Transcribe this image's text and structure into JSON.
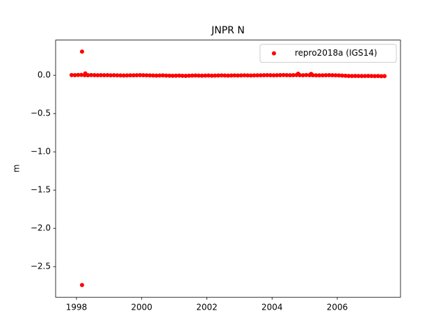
{
  "chart_data": {
    "type": "scatter",
    "title": "JNPR N",
    "y_label": "m",
    "series": [
      {
        "name": "repro2018a (IGS14)",
        "color": "#ff0000",
        "x": [
          1997.85,
          1997.95,
          1998.05,
          1998.15,
          1998.25,
          1998.35,
          1998.45,
          1998.55,
          1998.65,
          1998.75,
          1998.85,
          1998.95,
          1999.05,
          1999.15,
          1999.25,
          1999.35,
          1999.45,
          1999.55,
          1999.65,
          1999.75,
          1999.85,
          1999.95,
          2000.05,
          2000.15,
          2000.25,
          2000.35,
          2000.45,
          2000.55,
          2000.65,
          2000.75,
          2000.85,
          2000.95,
          2001.05,
          2001.15,
          2001.25,
          2001.35,
          2001.45,
          2001.55,
          2001.65,
          2001.75,
          2001.85,
          2001.95,
          2002.05,
          2002.15,
          2002.25,
          2002.35,
          2002.45,
          2002.55,
          2002.65,
          2002.75,
          2002.85,
          2002.95,
          2003.05,
          2003.15,
          2003.25,
          2003.35,
          2003.45,
          2003.55,
          2003.65,
          2003.75,
          2003.85,
          2003.95,
          2004.05,
          2004.15,
          2004.25,
          2004.35,
          2004.45,
          2004.55,
          2004.65,
          2004.75,
          2004.85,
          2004.95,
          2005.05,
          2005.15,
          2005.25,
          2005.35,
          2005.45,
          2005.55,
          2005.65,
          2005.75,
          2005.85,
          2005.95,
          2006.05,
          2006.15,
          2006.25,
          2006.35,
          2006.45,
          2006.55,
          2006.65,
          2006.75,
          2006.85,
          2006.95,
          2007.05,
          2007.15,
          2007.25,
          2007.35,
          2007.45,
          1998.17,
          1998.17,
          1998.27,
          2004.8,
          2005.2
        ],
        "values": [
          0.003,
          0.002,
          0.004,
          0.005,
          0.002,
          0.001,
          0.003,
          0.002,
          0.001,
          0.002,
          0.001,
          0.002,
          0.0,
          0.001,
          -0.001,
          -0.002,
          -0.003,
          -0.002,
          -0.001,
          0.0,
          0.001,
          0.002,
          0.001,
          0.0,
          -0.002,
          -0.003,
          -0.004,
          -0.003,
          -0.002,
          -0.004,
          -0.005,
          -0.006,
          -0.005,
          -0.004,
          -0.006,
          -0.007,
          -0.005,
          -0.004,
          -0.003,
          -0.004,
          -0.005,
          -0.004,
          -0.003,
          -0.005,
          -0.004,
          -0.003,
          -0.002,
          -0.003,
          -0.004,
          -0.003,
          -0.002,
          -0.003,
          -0.002,
          -0.001,
          -0.002,
          -0.003,
          -0.002,
          -0.001,
          0.0,
          0.001,
          0.002,
          0.001,
          0.0,
          0.001,
          0.002,
          0.003,
          0.002,
          0.001,
          0.002,
          0.003,
          0.002,
          0.001,
          0.003,
          0.002,
          0.001,
          0.0,
          -0.001,
          0.0,
          0.001,
          0.002,
          0.001,
          0.0,
          -0.002,
          -0.004,
          -0.006,
          -0.008,
          -0.009,
          -0.008,
          -0.009,
          -0.01,
          -0.009,
          -0.008,
          -0.01,
          -0.011,
          -0.01,
          -0.012,
          -0.011,
          0.31,
          -2.74,
          0.025,
          0.02,
          0.018
        ]
      }
    ],
    "xlim": [
      1997.36,
      2007.94
    ],
    "xticks": [
      1998,
      2000,
      2002,
      2004,
      2006
    ],
    "ylim": [
      -2.9,
      0.46
    ],
    "yticks": [
      {
        "value": 0,
        "label": "0.0"
      },
      {
        "value": -0.5,
        "label": "−0.5"
      },
      {
        "value": -1.0,
        "label": "−1.0"
      },
      {
        "value": -1.5,
        "label": "−1.5"
      },
      {
        "value": -2.0,
        "label": "−2.0"
      },
      {
        "value": -2.5,
        "label": "−2.5"
      }
    ],
    "legend": "upper right"
  }
}
